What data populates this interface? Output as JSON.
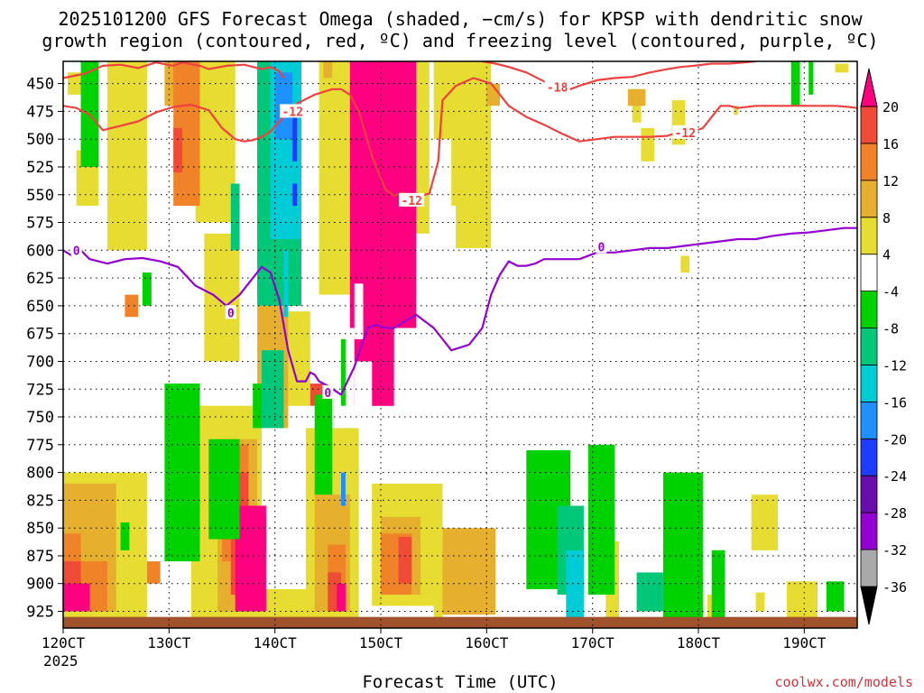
{
  "chart_data": {
    "type": "heatmap",
    "title_line1": "2025101200 GFS Forecast Omega (shaded, −cm/s) for KPSP with dendritic snow",
    "title_line2": "growth region (contoured, red, ºC) and freezing level (contoured, purple, ºC)",
    "xlabel": "Forecast Time (UTC)",
    "year_label": "2025",
    "credit": "coolwx.com/models",
    "x_ticks": [
      "120CT",
      "130CT",
      "140CT",
      "150CT",
      "160CT",
      "170CT",
      "180CT",
      "190CT"
    ],
    "x_range_hours": [
      0,
      180
    ],
    "y_range_hpa": [
      430,
      940
    ],
    "y_ticks": [
      450,
      475,
      500,
      525,
      550,
      575,
      600,
      625,
      650,
      675,
      700,
      725,
      750,
      775,
      800,
      825,
      850,
      875,
      900,
      925
    ],
    "colorbar": {
      "colors": [
        "#000000",
        "#a9a9a9",
        "#9400d3",
        "#6a0dad",
        "#1e3cff",
        "#1e90ff",
        "#00ccd5",
        "#00c878",
        "#00d200",
        "#ffffff",
        "#e6dc32",
        "#e6af2d",
        "#f08228",
        "#f04b37",
        "#ff0080"
      ],
      "labels": [
        "-36",
        "-32",
        "-28",
        "-24",
        "-20",
        "-16",
        "-12",
        "-8",
        "-4",
        "4",
        "8",
        "12",
        "16",
        "20"
      ]
    },
    "contour_labels": {
      "dgz": [
        {
          "text": "-12",
          "hour": 52,
          "p": 475
        },
        {
          "text": "-18",
          "hour": 112,
          "p": 453
        },
        {
          "text": "-12",
          "hour": 79,
          "p": 555
        },
        {
          "text": "-12",
          "hour": 141,
          "p": 494
        }
      ],
      "freezing": [
        {
          "text": "0",
          "hour": 3,
          "p": 600
        },
        {
          "text": "0",
          "hour": 38,
          "p": 656
        },
        {
          "text": "0",
          "hour": 60,
          "p": 728
        },
        {
          "text": "0",
          "hour": 122,
          "p": 597
        }
      ]
    },
    "series": [
      {
        "name": "-12C isotherm (upper branch)",
        "x": [
          0,
          5,
          9,
          13,
          17,
          21,
          25,
          27,
          31,
          33,
          37,
          41,
          45,
          47,
          49,
          50
        ],
        "y": [
          445,
          441,
          434,
          433,
          436,
          431,
          434,
          431,
          434,
          437,
          434,
          433,
          437,
          435,
          439,
          445
        ]
      },
      {
        "name": "-12C isotherm (main)",
        "x": [
          0,
          3,
          6,
          9,
          13,
          17,
          21,
          25,
          29,
          33,
          36,
          39,
          41,
          43,
          45,
          47,
          49,
          51,
          53,
          57,
          61,
          63,
          65,
          67,
          70,
          73,
          75,
          77,
          80,
          83,
          85,
          86,
          89,
          93,
          97,
          101,
          105,
          109,
          113,
          117,
          121,
          125,
          129,
          133,
          137,
          140,
          143,
          145,
          147,
          149,
          151,
          153,
          157,
          161,
          165,
          169,
          172,
          175,
          178,
          180
        ],
        "y": [
          470,
          472,
          478,
          492,
          488,
          484,
          476,
          471,
          469,
          474,
          490,
          500,
          502,
          501,
          498,
          493,
          484,
          476,
          468,
          460,
          455,
          455,
          460,
          475,
          515,
          545,
          551,
          548,
          552,
          549,
          520,
          465,
          452,
          445,
          450,
          470,
          480,
          487,
          495,
          502,
          500,
          498,
          498,
          498,
          497,
          493,
          493,
          490,
          480,
          470,
          470,
          472,
          470,
          470,
          470,
          470,
          470,
          470,
          471,
          472
        ]
      },
      {
        "name": "-18C isotherm",
        "x": [
          95,
          98,
          101,
          105,
          109,
          112,
          115,
          117,
          121,
          125,
          129,
          133,
          137,
          140,
          143,
          147,
          151,
          157
        ],
        "y": [
          430,
          432,
          435,
          440,
          448,
          455,
          455,
          452,
          447,
          445,
          444,
          440,
          437,
          435,
          434,
          432,
          432,
          430
        ]
      },
      {
        "name": "0C freezing level",
        "x": [
          0,
          2,
          4,
          6,
          8,
          10,
          14,
          18,
          22,
          26,
          30,
          34,
          37,
          40,
          43,
          45,
          47,
          49,
          51,
          53,
          55,
          56,
          57,
          58,
          60,
          63,
          66,
          69,
          71,
          73,
          75,
          77,
          80,
          84,
          88,
          92,
          95,
          97,
          99,
          101,
          103,
          105,
          107,
          109,
          113,
          117,
          121,
          125,
          129,
          133,
          137,
          141,
          145,
          149,
          153,
          157,
          161,
          165,
          169,
          173,
          177,
          180
        ],
        "y": [
          600,
          605,
          600,
          608,
          610,
          612,
          608,
          607,
          610,
          615,
          632,
          640,
          650,
          640,
          625,
          615,
          620,
          645,
          690,
          718,
          718,
          710,
          712,
          718,
          722,
          730,
          705,
          670,
          667,
          670,
          670,
          665,
          658,
          670,
          690,
          685,
          670,
          640,
          622,
          610,
          614,
          614,
          612,
          608,
          608,
          608,
          602,
          602,
          600,
          598,
          598,
          596,
          594,
          592,
          590,
          590,
          587,
          585,
          584,
          582,
          580,
          580
        ]
      }
    ],
    "regions": [
      {
        "fill": "#e6dc32",
        "rects": [
          [
            10,
            19,
            430,
            600
          ],
          [
            30,
            39,
            430,
            575
          ],
          [
            32,
            40,
            585,
            700
          ],
          [
            58,
            69,
            430,
            640
          ],
          [
            71,
            83,
            430,
            585
          ],
          [
            89,
            97,
            430,
            598
          ],
          [
            6,
            12,
            900,
            940
          ],
          [
            48,
            56,
            655,
            740
          ],
          [
            88,
            93,
            445,
            560
          ],
          [
            78,
            79,
            550,
            560
          ],
          [
            129,
            131,
            455,
            485
          ],
          [
            138,
            141,
            465,
            505
          ],
          [
            152,
            153,
            470,
            478
          ],
          [
            140,
            142,
            605,
            620
          ],
          [
            131,
            134,
            490,
            520
          ],
          [
            156,
            162,
            820,
            870
          ],
          [
            164,
            171,
            898,
            940
          ],
          [
            157,
            159,
            908,
            925
          ],
          [
            123,
            126,
            862,
            940
          ],
          [
            146,
            150,
            910,
            940
          ],
          [
            84,
            86,
            880,
            935
          ],
          [
            175,
            178,
            432,
            440
          ],
          [
            36,
            60,
            905,
            940
          ],
          [
            1,
            5,
            440,
            460
          ],
          [
            3,
            8,
            510,
            560
          ],
          [
            0,
            19,
            800,
            940
          ],
          [
            29,
            45,
            740,
            940
          ],
          [
            55,
            67,
            760,
            940
          ],
          [
            70,
            86,
            810,
            920
          ],
          [
            84,
            92,
            420,
            500
          ]
        ]
      },
      {
        "fill": "#e6af2d",
        "rects": [
          [
            23,
            29,
            430,
            470
          ],
          [
            44,
            51,
            650,
            760
          ],
          [
            59,
            61,
            430,
            445
          ],
          [
            67,
            75,
            430,
            560
          ],
          [
            96,
            99,
            450,
            470
          ],
          [
            128,
            132,
            455,
            470
          ],
          [
            0,
            12,
            810,
            925
          ],
          [
            35,
            44,
            770,
            925
          ],
          [
            57,
            65,
            820,
            925
          ],
          [
            72,
            81,
            840,
            910
          ],
          [
            86,
            98,
            850,
            928
          ]
        ]
      },
      {
        "fill": "#f08228",
        "rects": [
          [
            25,
            31,
            430,
            560
          ],
          [
            36,
            42,
            775,
            880
          ],
          [
            14,
            17,
            640,
            660
          ],
          [
            42,
            46,
            840,
            870
          ],
          [
            60,
            64,
            865,
            925
          ],
          [
            72,
            79,
            855,
            910
          ],
          [
            19,
            22,
            880,
            900
          ],
          [
            4,
            10,
            880,
            925
          ],
          [
            0,
            4,
            855,
            925
          ]
        ]
      },
      {
        "fill": "#f04b37",
        "rects": [
          [
            25,
            27,
            490,
            530
          ],
          [
            56,
            59,
            720,
            740
          ],
          [
            38,
            42,
            800,
            910
          ],
          [
            76,
            79,
            858,
            900
          ],
          [
            0,
            4,
            880,
            925
          ],
          [
            60,
            63,
            890,
            925
          ]
        ]
      },
      {
        "fill": "#ff0080",
        "rects": [
          [
            65,
            80,
            430,
            670
          ],
          [
            66,
            75,
            630,
            740
          ],
          [
            39,
            46,
            830,
            925
          ],
          [
            62,
            64,
            900,
            925
          ],
          [
            0,
            6,
            900,
            925
          ]
        ]
      },
      {
        "fill": "#00d200",
        "rects": [
          [
            4,
            8,
            430,
            525
          ],
          [
            44,
            48,
            430,
            645
          ],
          [
            23,
            31,
            720,
            880
          ],
          [
            33,
            40,
            770,
            860
          ],
          [
            43,
            45,
            720,
            760
          ],
          [
            57,
            61,
            730,
            820
          ],
          [
            105,
            115,
            780,
            905
          ],
          [
            119,
            125,
            775,
            910
          ],
          [
            136,
            145,
            800,
            940
          ],
          [
            173,
            177,
            898,
            925
          ],
          [
            165,
            167,
            430,
            470
          ],
          [
            169,
            170,
            430,
            460
          ],
          [
            185,
            188,
            430,
            440
          ],
          [
            13,
            15,
            845,
            870
          ],
          [
            18,
            20,
            620,
            650
          ],
          [
            63,
            64,
            680,
            740
          ],
          [
            147,
            150,
            870,
            940
          ]
        ]
      },
      {
        "fill": "#00c878",
        "rects": [
          [
            44,
            54,
            430,
            650
          ],
          [
            38,
            40,
            540,
            600
          ],
          [
            112,
            118,
            830,
            910
          ],
          [
            45,
            50,
            690,
            760
          ],
          [
            130,
            136,
            890,
            925
          ]
        ]
      },
      {
        "fill": "#00ccd5",
        "rects": [
          [
            47,
            54,
            430,
            590
          ],
          [
            50,
            51,
            600,
            660
          ],
          [
            114,
            118,
            870,
            940
          ]
        ]
      },
      {
        "fill": "#1e90ff",
        "rects": [
          [
            48,
            52,
            440,
            500
          ],
          [
            63,
            64,
            800,
            830
          ]
        ]
      },
      {
        "fill": "#1e3cff",
        "rects": [
          [
            52,
            53,
            470,
            520
          ],
          [
            52,
            53,
            540,
            560
          ]
        ]
      },
      {
        "fill": "#ffffff",
        "rects": [
          [
            66,
            70,
            700,
            760
          ],
          [
            75,
            78,
            700,
            760
          ],
          [
            66,
            68,
            630,
            680
          ]
        ]
      }
    ],
    "ground": {
      "fill": "#a0522d",
      "p_top": 930
    }
  }
}
